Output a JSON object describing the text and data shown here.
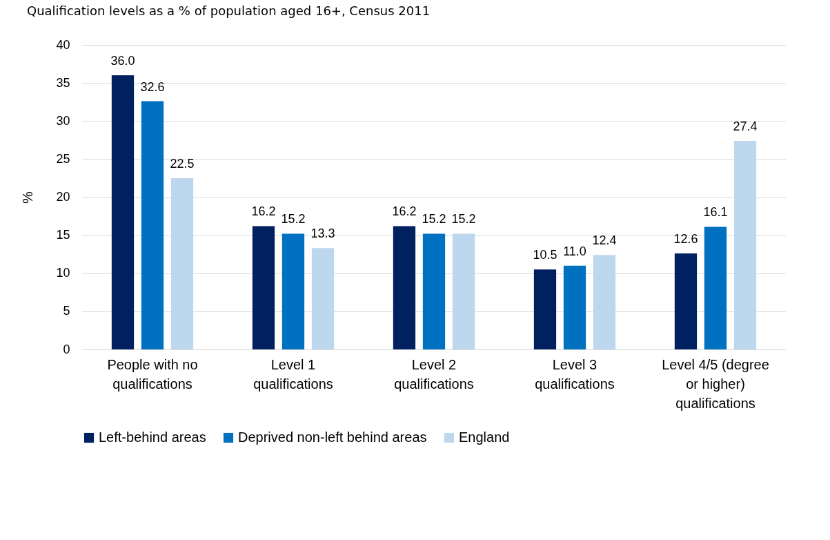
{
  "chart_data": {
    "type": "bar",
    "title": "Qualification levels as a % of population aged 16+, Census 2011",
    "ylabel": "%",
    "categories": [
      "People with no qualifications",
      "Level 1 qualifications",
      "Level 2 qualifications",
      "Level 3 qualifications",
      "Level 4/5 (degree or higher) qualifications"
    ],
    "series": [
      {
        "name": "Left-behind areas",
        "color": "#002060",
        "values": [
          36.0,
          16.2,
          16.2,
          10.5,
          12.6
        ],
        "value_labels": [
          "36.0",
          "16.2",
          "16.2",
          "10.5",
          "12.6"
        ]
      },
      {
        "name": "Deprived non-left behind areas",
        "color": "#0070c0",
        "values": [
          32.6,
          15.2,
          15.2,
          11.0,
          16.1
        ],
        "value_labels": [
          "32.6",
          "15.2",
          "15.2",
          "11.0",
          "16.1"
        ]
      },
      {
        "name": "England",
        "color": "#bdd7ee",
        "values": [
          22.5,
          13.3,
          15.2,
          12.4,
          27.4
        ],
        "value_labels": [
          "22.5",
          "13.3",
          "15.2",
          "12.4",
          "27.4"
        ]
      }
    ],
    "ylim": [
      0,
      40
    ],
    "yticks": [
      0,
      5,
      10,
      15,
      20,
      25,
      30,
      35,
      40
    ],
    "grid": "y",
    "legend": "bottom"
  }
}
